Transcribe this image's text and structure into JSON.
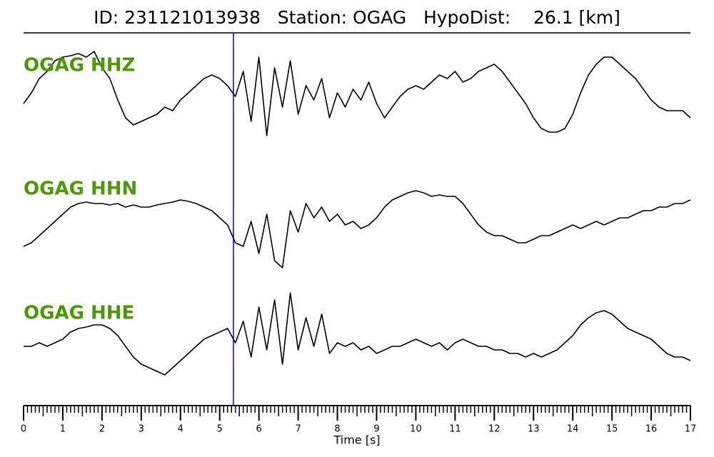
{
  "chart_data": {
    "type": "seismogram",
    "title": "ID: 231121013938   Station: OGAG   HypoDist:    26.1 [km]",
    "xlabel": "Time [s]",
    "xlim": [
      0,
      17
    ],
    "xticks": [
      0,
      1,
      2,
      3,
      4,
      5,
      6,
      7,
      8,
      9,
      10,
      11,
      12,
      13,
      14,
      15,
      16,
      17
    ],
    "mid_tick_step": 0.5,
    "minor_tick_step": 0.1,
    "pick_time": 5.35,
    "pick_color": "#0000cc",
    "label_color": "#4a9a00",
    "x": [
      0,
      0.2,
      0.4,
      0.6,
      0.8,
      1,
      1.2,
      1.4,
      1.6,
      1.8,
      2,
      2.2,
      2.4,
      2.6,
      2.8,
      3,
      3.2,
      3.4,
      3.6,
      3.8,
      4,
      4.2,
      4.4,
      4.6,
      4.8,
      5,
      5.2,
      5.4,
      5.6,
      5.8,
      6,
      6.2,
      6.4,
      6.6,
      6.8,
      7,
      7.2,
      7.4,
      7.6,
      7.8,
      8,
      8.2,
      8.4,
      8.6,
      8.8,
      9,
      9.2,
      9.4,
      9.6,
      9.8,
      10,
      10.2,
      10.4,
      10.6,
      10.8,
      11,
      11.2,
      11.4,
      11.6,
      11.8,
      12,
      12.2,
      12.4,
      12.6,
      12.8,
      13,
      13.2,
      13.4,
      13.6,
      13.8,
      14,
      14.2,
      14.4,
      14.6,
      14.8,
      15,
      15.2,
      15.4,
      15.6,
      15.8,
      16,
      16.2,
      16.4,
      16.6,
      16.8,
      17
    ],
    "series": [
      {
        "name": "OGAG HHZ",
        "color": "#000000",
        "values": [
          -15,
          0,
          20,
          30,
          45,
          50,
          52,
          55,
          50,
          58,
          35,
          20,
          -10,
          -35,
          -45,
          -40,
          -35,
          -30,
          -20,
          -25,
          -10,
          0,
          10,
          20,
          25,
          20,
          10,
          -5,
          30,
          -40,
          50,
          -60,
          35,
          -20,
          45,
          -30,
          10,
          -10,
          20,
          -35,
          0,
          -20,
          5,
          -10,
          15,
          -15,
          -35,
          -20,
          -5,
          5,
          10,
          5,
          15,
          25,
          20,
          30,
          15,
          20,
          30,
          35,
          40,
          30,
          15,
          0,
          -15,
          -35,
          -50,
          -55,
          -55,
          -50,
          -30,
          0,
          25,
          40,
          50,
          50,
          40,
          30,
          20,
          5,
          -10,
          -20,
          -25,
          -25,
          -25,
          -35
        ]
      },
      {
        "name": "OGAG HHN",
        "color": "#000000",
        "values": [
          -30,
          -25,
          -15,
          -5,
          5,
          15,
          25,
          30,
          32,
          30,
          30,
          28,
          30,
          25,
          28,
          25,
          25,
          28,
          30,
          32,
          35,
          33,
          30,
          25,
          20,
          10,
          0,
          -25,
          -30,
          5,
          -40,
          15,
          -50,
          -60,
          20,
          -10,
          30,
          10,
          25,
          5,
          15,
          0,
          5,
          -5,
          0,
          10,
          25,
          35,
          40,
          45,
          48,
          45,
          40,
          42,
          40,
          40,
          30,
          15,
          0,
          -10,
          -15,
          -15,
          -20,
          -25,
          -25,
          -20,
          -15,
          -15,
          -10,
          -5,
          0,
          -5,
          0,
          5,
          0,
          5,
          10,
          10,
          15,
          20,
          20,
          25,
          25,
          30,
          30,
          35
        ]
      },
      {
        "name": "OGAG HHE",
        "color": "#000000",
        "values": [
          -15,
          -15,
          -10,
          -15,
          -10,
          -5,
          5,
          10,
          12,
          15,
          15,
          10,
          0,
          -15,
          -30,
          -40,
          -45,
          -50,
          -55,
          -45,
          -35,
          -25,
          -15,
          -5,
          0,
          5,
          10,
          -10,
          20,
          -30,
          40,
          -20,
          50,
          -40,
          60,
          -20,
          25,
          -15,
          30,
          -25,
          -10,
          -15,
          -10,
          -20,
          -15,
          -25,
          -20,
          -15,
          -15,
          -10,
          -5,
          -10,
          -15,
          -10,
          -20,
          -10,
          -5,
          -10,
          -15,
          -15,
          -20,
          -20,
          -25,
          -25,
          -30,
          -25,
          -30,
          -25,
          -20,
          -10,
          0,
          15,
          25,
          32,
          35,
          30,
          20,
          10,
          5,
          0,
          -5,
          -15,
          -25,
          -30,
          -30,
          -35
        ]
      }
    ]
  }
}
